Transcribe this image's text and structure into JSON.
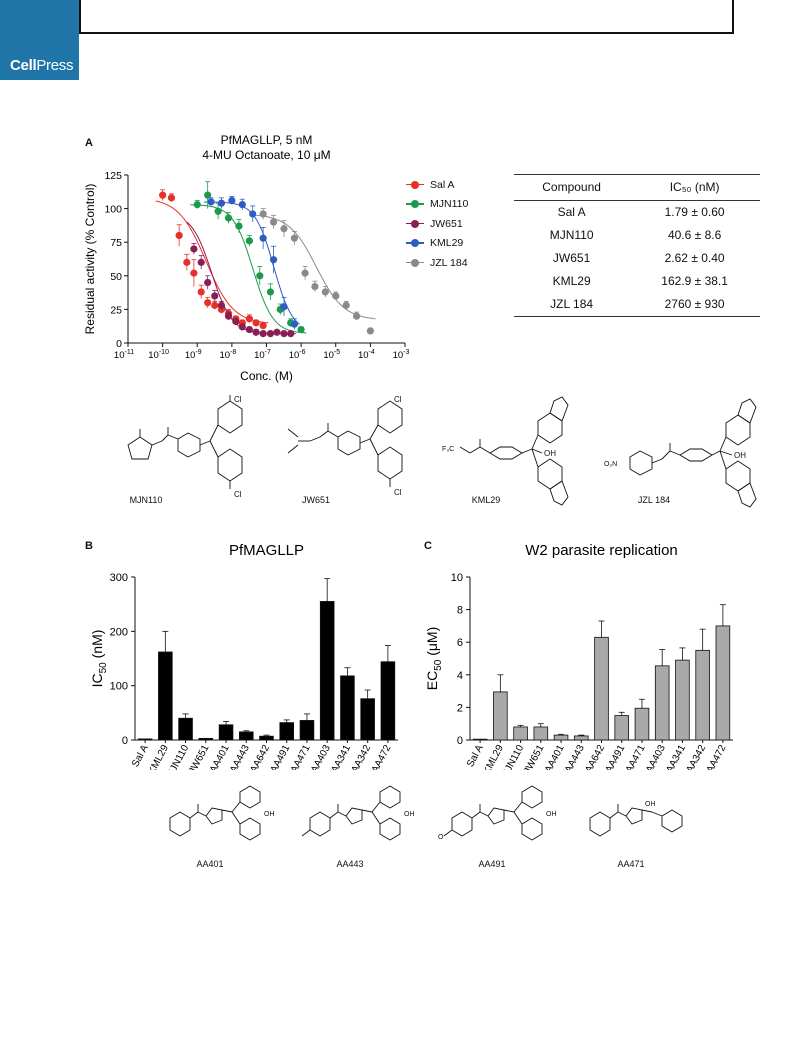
{
  "header": {
    "journal_logo_a": "Cell",
    "journal_logo_b": "Press"
  },
  "panels": {
    "a": "A",
    "b": "B",
    "c": "C"
  },
  "chart_data": [
    {
      "type": "scatter",
      "title": "PfMAGLLP, 5 nM",
      "subtitle": "4-MU Octanoate, 10 μM",
      "xlabel": "Conc. (M)",
      "ylabel": "Residual activity (% Control)",
      "x_scale": "log",
      "xlim": [
        1e-11,
        0.001
      ],
      "ylim": [
        0,
        125
      ],
      "yticks": [
        0,
        25,
        50,
        75,
        100,
        125
      ],
      "xtick_exponents": [
        "-11",
        "-10",
        "-9",
        "-8",
        "-7",
        "-6",
        "-5",
        "-4",
        "-3"
      ],
      "legend_position": "right",
      "series": [
        {
          "name": "Sal A",
          "color": "#e8302a",
          "ic50": 1.79e-09,
          "top": 108,
          "bottom": 14,
          "hill": 1.1,
          "x": [
            1e-10,
            1.8e-10,
            3e-10,
            5e-10,
            8e-10,
            1.3e-09,
            2e-09,
            3.2e-09,
            5e-09,
            8e-09,
            1.3e-08,
            2e-08,
            3.2e-08,
            5e-08,
            8e-08
          ],
          "y": [
            110,
            108,
            80,
            60,
            52,
            38,
            30,
            28,
            25,
            22,
            18,
            15,
            18,
            15,
            13
          ],
          "err": [
            4,
            3,
            8,
            6,
            10,
            5,
            4,
            3,
            3,
            3,
            2,
            2,
            3,
            2,
            2
          ]
        },
        {
          "name": "MJN110",
          "color": "#1a9a4a",
          "ic50": 4.06e-08,
          "top": 103,
          "bottom": 7,
          "hill": 1.5,
          "x": [
            1e-09,
            2e-09,
            4e-09,
            8e-09,
            1.6e-08,
            3.2e-08,
            6.4e-08,
            1.3e-07,
            2.5e-07,
            5e-07,
            1e-06
          ],
          "y": [
            103,
            110,
            98,
            93,
            87,
            76,
            50,
            38,
            25,
            15,
            10
          ],
          "err": [
            3,
            10,
            6,
            4,
            5,
            4,
            7,
            6,
            4,
            3,
            2
          ]
        },
        {
          "name": "JW651",
          "color": "#8a1e55",
          "ic50": 2.62e-09,
          "top": 97,
          "bottom": 7,
          "hill": 1.5,
          "x": [
            8e-10,
            1.3e-09,
            2e-09,
            3.2e-09,
            5e-09,
            8e-09,
            1.3e-08,
            2e-08,
            3.2e-08,
            5e-08,
            8e-08,
            1.3e-07,
            2e-07,
            3.2e-07,
            5e-07
          ],
          "y": [
            70,
            60,
            45,
            35,
            28,
            20,
            16,
            12,
            10,
            8,
            7,
            7,
            8,
            7,
            7
          ],
          "err": [
            4,
            5,
            5,
            4,
            3,
            3,
            2,
            2,
            2,
            2,
            1,
            1,
            1,
            1,
            1
          ]
        },
        {
          "name": "KML29",
          "color": "#2f5cc0",
          "ic50": 1.629e-07,
          "top": 105,
          "bottom": 8,
          "hill": 1.6,
          "x": [
            2.5e-09,
            5e-09,
            1e-08,
            2e-08,
            4e-08,
            8e-08,
            1.6e-07,
            3.2e-07,
            6.4e-07
          ],
          "y": [
            105,
            104,
            106,
            103,
            96,
            78,
            62,
            27,
            14
          ],
          "err": [
            3,
            4,
            3,
            4,
            6,
            8,
            10,
            7,
            4
          ]
        },
        {
          "name": "JZL 184",
          "color": "#8a8a8a",
          "ic50": 2.76e-06,
          "top": 96,
          "bottom": 17,
          "hill": 1.1,
          "x": [
            8e-08,
            1.6e-07,
            3.2e-07,
            6.4e-07,
            1.3e-06,
            2.5e-06,
            5e-06,
            1e-05,
            2e-05,
            4e-05,
            0.0001
          ],
          "y": [
            96,
            90,
            85,
            78,
            52,
            42,
            38,
            35,
            28,
            20,
            9
          ],
          "err": [
            4,
            5,
            6,
            5,
            5,
            4,
            4,
            3,
            3,
            3,
            2
          ]
        }
      ]
    },
    {
      "type": "table",
      "columns": [
        "Compound",
        "IC₅₀ (nM)"
      ],
      "rows": [
        [
          "Sal A",
          "1.79 ± 0.60"
        ],
        [
          "MJN110",
          "40.6 ± 8.6"
        ],
        [
          "JW651",
          "2.62 ± 0.40"
        ],
        [
          "KML29",
          "162.9 ± 38.1"
        ],
        [
          "JZL 184",
          "2760 ± 930"
        ]
      ]
    },
    {
      "type": "bar",
      "title": "PfMAGLLP",
      "ylabel": "IC50 (nM)",
      "ylim": [
        0,
        300
      ],
      "yticks": [
        0,
        100,
        200,
        300
      ],
      "color": "#000000",
      "categories": [
        "Sal A",
        "KML29",
        "MJN110",
        "JW651",
        "AA401",
        "AA443",
        "AA642",
        "AA491",
        "AA471",
        "AA403",
        "AA341",
        "AA342",
        "AA472"
      ],
      "values": [
        2,
        162,
        40,
        3,
        28,
        15,
        7,
        32,
        36,
        255,
        118,
        76,
        144
      ],
      "errors": [
        0,
        38,
        8,
        0,
        6,
        2,
        2,
        5,
        12,
        42,
        15,
        16,
        30
      ]
    },
    {
      "type": "bar",
      "title": "W2 parasite replication",
      "ylabel": "EC50 (μM)",
      "ylim": [
        0,
        10
      ],
      "yticks": [
        0,
        2,
        4,
        6,
        8,
        10
      ],
      "color": "#a9a9a9",
      "categories": [
        "Sal A",
        "KML29",
        "MJN110",
        "JW651",
        "AA401",
        "AA443",
        "AA642",
        "AA491",
        "AA471",
        "AA403",
        "AA341",
        "AA342",
        "AA472"
      ],
      "values": [
        0.05,
        2.95,
        0.8,
        0.8,
        0.3,
        0.25,
        6.3,
        1.5,
        1.95,
        4.55,
        4.9,
        5.5,
        7.0
      ],
      "errors": [
        0,
        1.05,
        0.1,
        0.2,
        0.05,
        0.05,
        1.0,
        0.2,
        0.55,
        1.0,
        0.75,
        1.3,
        1.3
      ]
    }
  ],
  "structures_top": [
    {
      "label": "MJN110"
    },
    {
      "label": "JW651"
    },
    {
      "label": "KML29"
    },
    {
      "label": "JZL 184"
    }
  ],
  "structures_bottom": [
    {
      "label": "AA401"
    },
    {
      "label": "AA443"
    },
    {
      "label": "AA491"
    },
    {
      "label": "AA471"
    }
  ],
  "chem_atoms": {
    "cl": "Cl",
    "oh": "OH",
    "o": "O",
    "n": "N",
    "f3c": "F₃C",
    "no2": "O₂N"
  }
}
